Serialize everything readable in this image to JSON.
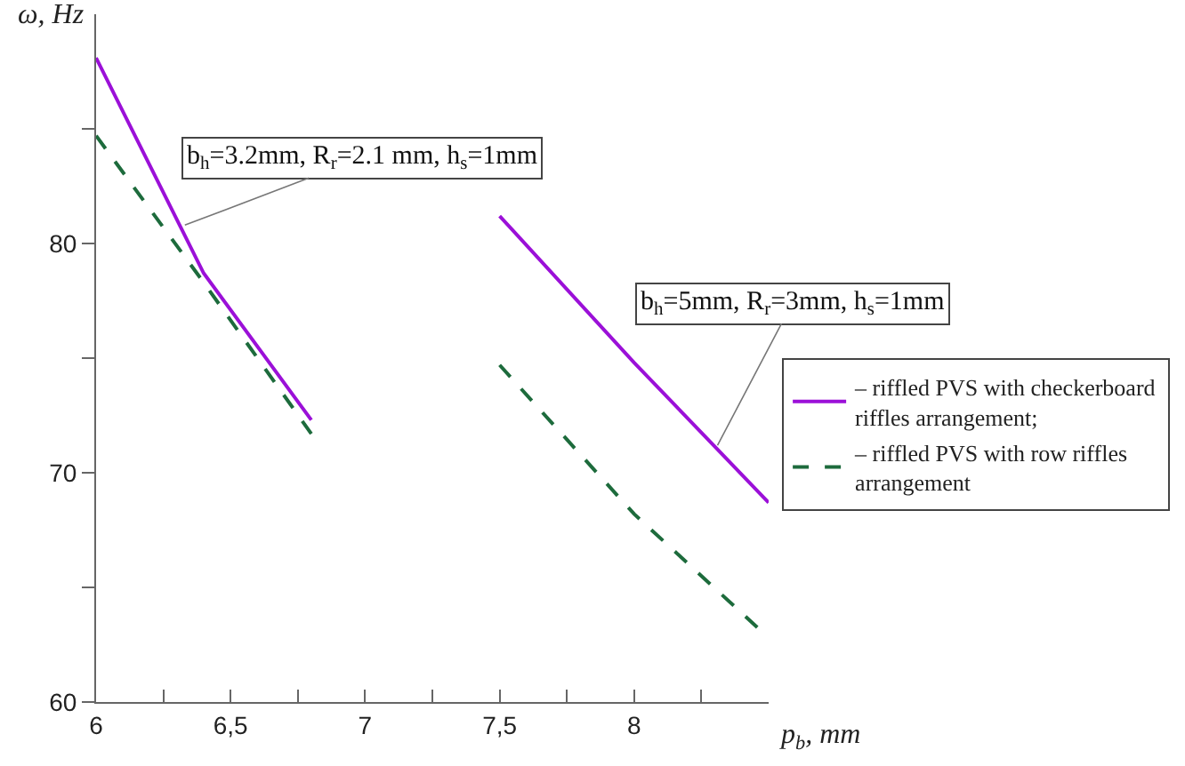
{
  "chart_data": {
    "type": "line",
    "xlabel": "p$_{b}$, mm",
    "ylabel": "ω, Hz",
    "x": [
      6,
      6.4,
      6.8,
      7,
      7.5,
      8,
      8.5
    ],
    "series": [
      {
        "name": "– riffled PVS with checkerboard\nriffles arrangement;",
        "color": "#9b10d8",
        "line_style": "solid",
        "values": [
          88.1,
          78.7,
          72.3,
          null,
          81.2,
          74.8,
          68.7
        ]
      },
      {
        "name": "– riffled PVS with row riffles\narrangement",
        "color": "#1d6b3c",
        "line_style": "dashed",
        "values": [
          84.7,
          78.3,
          71.7,
          null,
          74.7,
          68.2,
          62.8
        ]
      }
    ],
    "xlim": [
      6,
      8.5
    ],
    "ylim": [
      60,
      90
    ],
    "xticks": [
      6,
      {
        "value": 6.25,
        "label": null
      },
      {
        "value": 6.5,
        "label": "6,5"
      },
      {
        "value": 6.75,
        "label": null
      },
      7,
      {
        "value": 7.25,
        "label": null
      },
      {
        "value": 7.5,
        "label": "7,5"
      },
      {
        "value": 7.75,
        "label": null
      },
      8,
      {
        "value": 8.25,
        "label": null
      }
    ],
    "yticks": [
      60,
      {
        "value": 65,
        "label": null
      },
      70,
      {
        "value": 75,
        "label": null
      },
      80,
      {
        "value": 85,
        "label": null
      }
    ],
    "annotations": [
      {
        "text": "b$_{h}$=3.2mm, R$_{r}$=2.1 mm, h$_{s}$=1mm",
        "x": 6.33,
        "y": 80.8
      },
      {
        "text": "b$_{h}$=5mm, R$_{r}$=3mm, h$_{s}$=1mm",
        "x": 8.31,
        "y": 71.2
      }
    ],
    "grid": false,
    "legend": "right",
    "marker": "none"
  }
}
